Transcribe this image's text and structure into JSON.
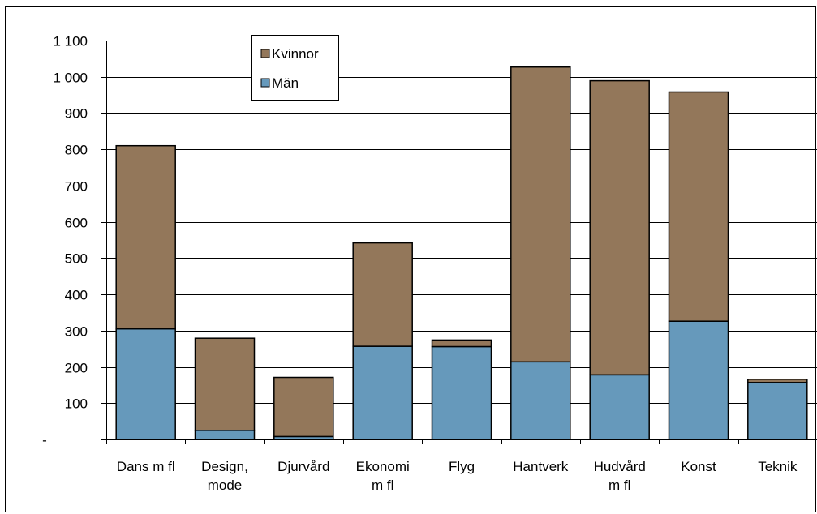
{
  "chart_data": {
    "type": "bar",
    "stacked": true,
    "categories": [
      [
        "Dans m fl"
      ],
      [
        "Design,",
        "mode"
      ],
      [
        "Djurvård"
      ],
      [
        "Ekonomi",
        "m fl"
      ],
      [
        "Flyg"
      ],
      [
        "Hantverk"
      ],
      [
        "Hudvård",
        "m fl"
      ],
      [
        "Konst"
      ],
      [
        "Teknik"
      ]
    ],
    "series": [
      {
        "name": "Män",
        "color": "#6699bb",
        "values": [
          305,
          25,
          8,
          257,
          256,
          214,
          178,
          326,
          157
        ]
      },
      {
        "name": "Kvinnor",
        "color": "#93775a",
        "values": [
          505,
          254,
          163,
          285,
          18,
          813,
          811,
          632,
          9
        ]
      }
    ],
    "ylim": [
      0,
      1100
    ],
    "yticks": [
      0,
      100,
      200,
      300,
      400,
      500,
      600,
      700,
      800,
      900,
      1000,
      1100
    ],
    "ytick_labels": [
      "-",
      "100",
      "200",
      "300",
      "400",
      "500",
      "600",
      "700",
      "800",
      "900",
      "1 000",
      "1 100"
    ],
    "legend_order": [
      "Kvinnor",
      "Män"
    ],
    "legend_position": "top-center",
    "grid": true,
    "title": "",
    "xlabel": "",
    "ylabel": ""
  }
}
